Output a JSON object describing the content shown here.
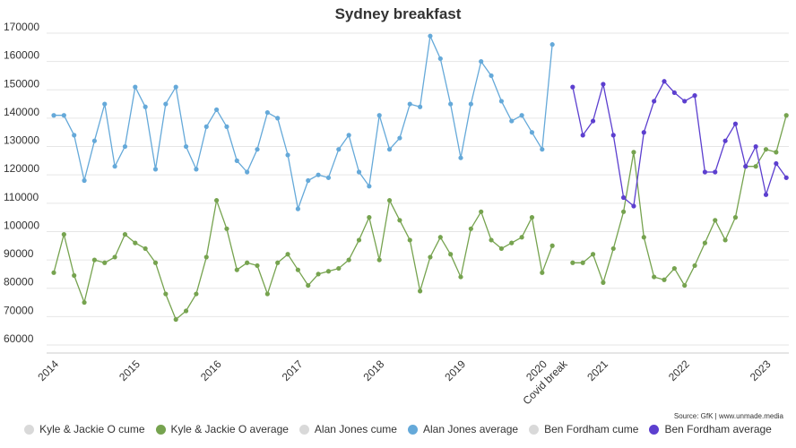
{
  "chart_data": {
    "type": "line",
    "title": "Sydney breakfast",
    "source": "Source: GfK | www.unmade.media",
    "ylim": [
      60000,
      170000
    ],
    "y_ticks": [
      60000,
      70000,
      80000,
      90000,
      100000,
      110000,
      120000,
      130000,
      140000,
      150000,
      160000,
      170000
    ],
    "x_ticks": [
      {
        "label": "2014",
        "x": 0
      },
      {
        "label": "2015",
        "x": 8
      },
      {
        "label": "2016",
        "x": 16
      },
      {
        "label": "2017",
        "x": 24
      },
      {
        "label": "2018",
        "x": 32
      },
      {
        "label": "2019",
        "x": 40
      },
      {
        "label": "2020",
        "x": 48
      },
      {
        "label": "Covid break",
        "x": 50
      },
      {
        "label": "2021",
        "x": 54
      },
      {
        "label": "2022",
        "x": 62
      },
      {
        "label": "2023",
        "x": 70
      }
    ],
    "series": [
      {
        "name": "Kyle & Jackie O cume",
        "color": "#d9d9d9",
        "visible": false,
        "values": []
      },
      {
        "name": "Kyle & Jackie O average",
        "color": "#76a34f",
        "visible": true,
        "values": [
          85500,
          99000,
          84500,
          75000,
          90000,
          89000,
          91000,
          99000,
          96000,
          94000,
          89000,
          78000,
          69000,
          72000,
          78000,
          91000,
          111000,
          101000,
          86500,
          89000,
          88000,
          78000,
          89000,
          92000,
          86500,
          81000,
          85000,
          86000,
          87000,
          90000,
          97000,
          105000,
          90000,
          111000,
          104000,
          97000,
          79000,
          91000,
          98000,
          92000,
          84000,
          101000,
          107000,
          97000,
          94000,
          96000,
          98000,
          105000,
          85500,
          95000,
          null,
          89000,
          89000,
          92000,
          82000,
          94000,
          107000,
          128000,
          98000,
          84000,
          83000,
          87000,
          81000,
          88000,
          96000,
          104000,
          97000,
          105000,
          123000,
          123000,
          129000,
          128000,
          141000
        ]
      },
      {
        "name": "Alan Jones cume",
        "color": "#d9d9d9",
        "visible": false,
        "values": []
      },
      {
        "name": "Alan Jones average",
        "color": "#65a9d9",
        "visible": true,
        "values": [
          141000,
          141000,
          134000,
          118000,
          132000,
          145000,
          123000,
          130000,
          151000,
          144000,
          122000,
          145000,
          151000,
          130000,
          122000,
          137000,
          143000,
          137000,
          125000,
          121000,
          129000,
          142000,
          140000,
          127000,
          108000,
          118000,
          120000,
          119000,
          129000,
          134000,
          121000,
          116000,
          141000,
          129000,
          133000,
          145000,
          144000,
          169000,
          161000,
          145000,
          126000,
          145000,
          160000,
          155000,
          146000,
          139000,
          141000,
          135000,
          129000,
          166000
        ]
      },
      {
        "name": "Ben Fordham cume",
        "color": "#d9d9d9",
        "visible": false,
        "values": []
      },
      {
        "name": "Ben Fordham average",
        "color": "#5c3fcf",
        "visible": true,
        "x_start": 51,
        "values": [
          151000,
          134000,
          139000,
          152000,
          134000,
          112000,
          109000,
          135000,
          146000,
          153000,
          149000,
          146000,
          148000,
          121000,
          121000,
          132000,
          138000,
          123000,
          130000,
          113000,
          124000,
          119000
        ]
      }
    ]
  }
}
